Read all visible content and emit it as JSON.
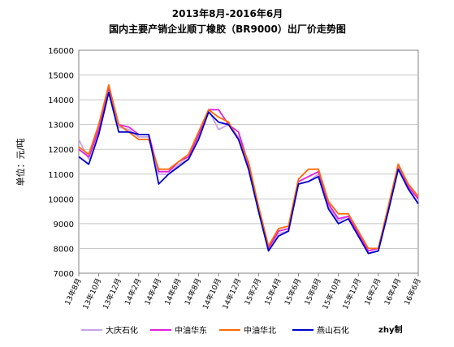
{
  "chart_data": {
    "type": "line",
    "title_line1": "2013年8月-2016年6月",
    "title_line2": "国内主要产销企业顺丁橡胶（BR9000）出厂价走势图",
    "ylabel": "单位：元/吨",
    "xlabel": "",
    "ylim": [
      7000,
      16000
    ],
    "yticks": [
      7000,
      8000,
      9000,
      10000,
      11000,
      12000,
      13000,
      14000,
      15000,
      16000
    ],
    "x_tick_labels": [
      "13年8月",
      "13年10月",
      "13年12月",
      "14年2月",
      "14年4月",
      "14年6月",
      "14年8月",
      "14年10月",
      "14年12月",
      "15年2月",
      "15年4月",
      "15年6月",
      "15年8月",
      "15年10月",
      "15年12月",
      "16年2月",
      "16年4月",
      "16年6月"
    ],
    "grid": true,
    "legend_position": "bottom",
    "credit": "zhy制",
    "x": [
      "2013-08",
      "2013-09",
      "2013-10",
      "2013-11",
      "2013-12",
      "2014-01",
      "2014-02",
      "2014-03",
      "2014-04",
      "2014-05",
      "2014-06",
      "2014-07",
      "2014-08",
      "2014-09",
      "2014-10",
      "2014-11",
      "2014-12",
      "2015-01",
      "2015-02",
      "2015-03",
      "2015-04",
      "2015-05",
      "2015-06",
      "2015-07",
      "2015-08",
      "2015-09",
      "2015-10",
      "2015-11",
      "2015-12",
      "2016-01",
      "2016-02",
      "2016-03",
      "2016-04",
      "2016-05",
      "2016-06"
    ],
    "series": [
      {
        "name": "大庆石化",
        "color": "#c8a2e8",
        "values": [
          12400,
          11600,
          12700,
          14300,
          12900,
          12800,
          12500,
          12500,
          11000,
          11000,
          11400,
          11600,
          12500,
          13600,
          12800,
          13000,
          12500,
          11300,
          9500,
          8000,
          8600,
          8700,
          10600,
          10700,
          11000,
          9700,
          9100,
          9300,
          8600,
          7800,
          7900,
          9500,
          11300,
          10500,
          9800
        ]
      },
      {
        "name": "中油华东",
        "color": "#e020e0",
        "values": [
          12000,
          11700,
          12800,
          14500,
          13000,
          12900,
          12600,
          12600,
          11100,
          11100,
          11500,
          11700,
          12600,
          13600,
          13600,
          13000,
          12700,
          11400,
          9600,
          8000,
          8700,
          8800,
          10700,
          10900,
          11100,
          9800,
          9200,
          9300,
          8600,
          7900,
          8000,
          9600,
          11400,
          10500,
          10000
        ]
      },
      {
        "name": "中油华北",
        "color": "#ff6a00",
        "values": [
          12100,
          11800,
          13000,
          14600,
          13000,
          12700,
          12400,
          12400,
          11200,
          11200,
          11500,
          11800,
          12700,
          13600,
          13300,
          13100,
          12400,
          11500,
          9700,
          8100,
          8800,
          8900,
          10800,
          11200,
          11200,
          9900,
          9400,
          9400,
          8700,
          8000,
          8000,
          9700,
          11400,
          10600,
          10100
        ]
      },
      {
        "name": "燕山石化",
        "color": "#0000cc",
        "values": [
          11700,
          11400,
          12600,
          14300,
          12700,
          12700,
          12600,
          12600,
          10600,
          11000,
          11300,
          11600,
          12400,
          13500,
          13100,
          13000,
          12400,
          11200,
          9500,
          7900,
          8500,
          8700,
          10600,
          10700,
          10900,
          9600,
          9000,
          9200,
          8500,
          7800,
          7900,
          9500,
          11200,
          10400,
          9800
        ]
      }
    ]
  }
}
